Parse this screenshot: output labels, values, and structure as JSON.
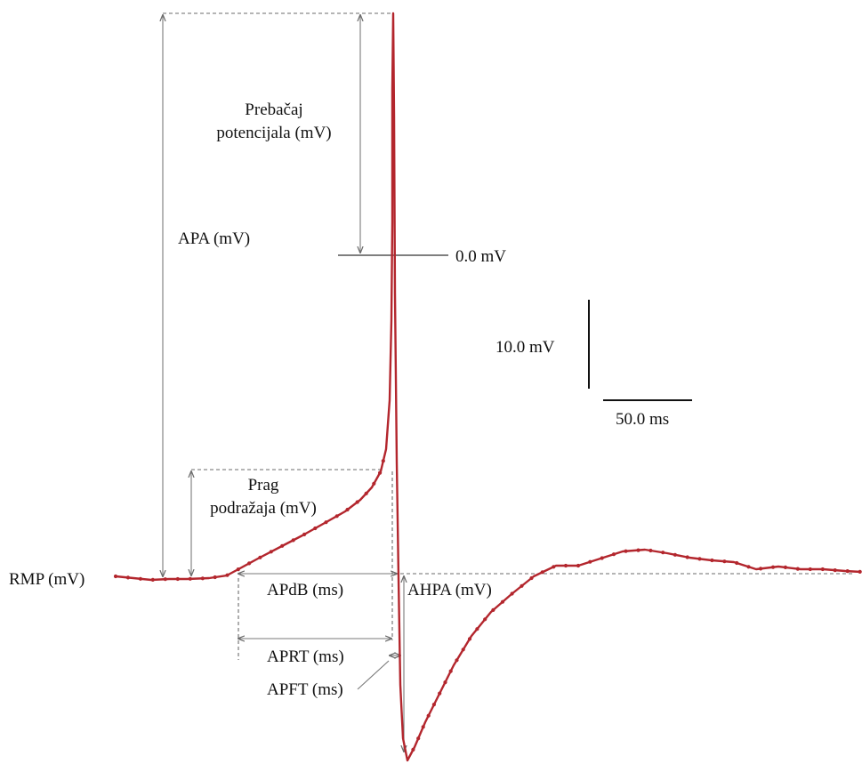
{
  "labels": {
    "overshoot_line1": "Prebačaj",
    "overshoot_line2": "potencijala (mV)",
    "apa": "APA (mV)",
    "zero": "0.0 mV",
    "scale_mv": "10.0 mV",
    "scale_ms": "50.0 ms",
    "threshold_line1": "Prag",
    "threshold_line2": "podražaja (mV)",
    "rmp": "RMP (mV)",
    "apdb": "APdB (ms)",
    "ahpa": "AHPA (mV)",
    "aprt": "APRT (ms)",
    "apft": "APFT (ms)"
  },
  "colors": {
    "trace": "#b3262d",
    "annotation": "#7a7a7a",
    "text": "#111111"
  }
}
